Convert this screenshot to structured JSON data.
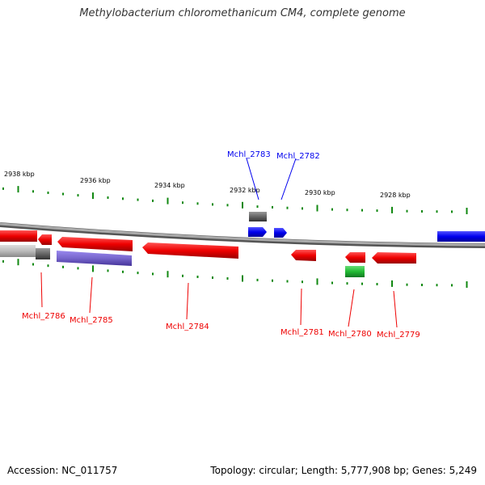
{
  "header": {
    "title": "Methylobacterium chloromethanicum CM4, complete genome"
  },
  "footer": {
    "accession": "Accession: NC_011757",
    "summary": "Topology: circular; Length: 5,777,908 bp; Genes: 5,249"
  },
  "scale_labels": [
    "2938 kbp",
    "2936 kbp",
    "2934 kbp",
    "2932 kbp",
    "2930 kbp",
    "2928 kbp"
  ],
  "gene_labels": {
    "top": [
      "Mchl_2783",
      "Mchl_2782"
    ],
    "bottom": [
      "Mchl_2786",
      "Mchl_2785",
      "Mchl_2784",
      "Mchl_2781",
      "Mchl_2780",
      "Mchl_2779"
    ]
  },
  "colors": {
    "forward_gene": "#0000ee",
    "reverse_gene": "#ee0000",
    "backbone": "#888888",
    "tick": "#118811",
    "rna_gene": "#22bb33",
    "pseudo_gene": "#666666",
    "highlight_gene": "#7766cc"
  }
}
